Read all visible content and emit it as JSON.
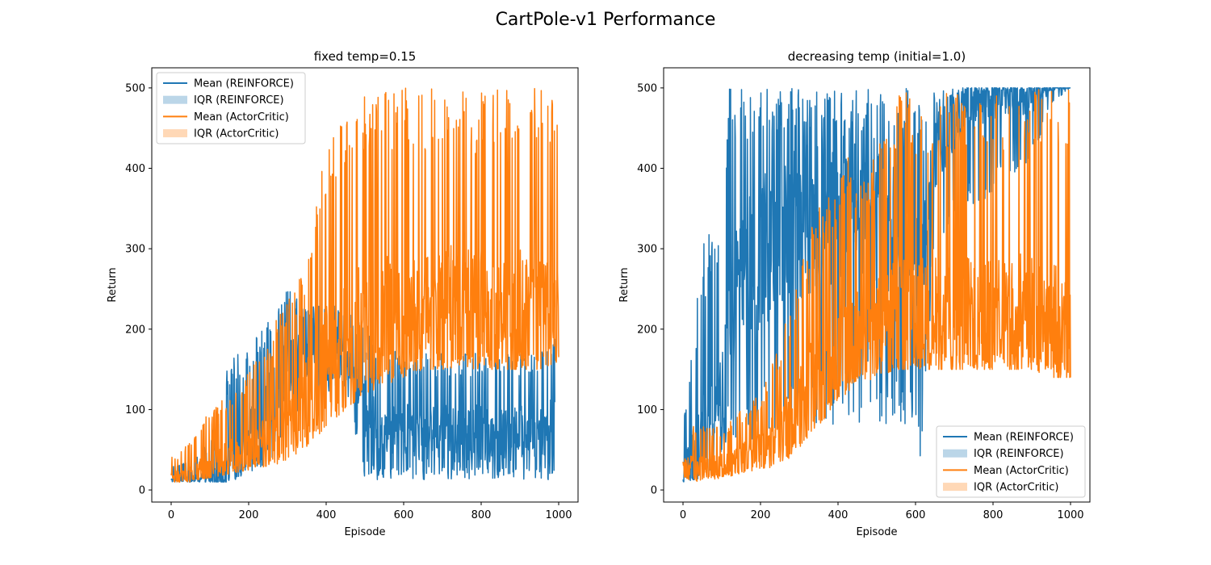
{
  "figure": {
    "title": "CartPole-v1 Performance"
  },
  "colors": {
    "reinforce": "#1f77b4",
    "actorcritic": "#ff7f0e"
  },
  "chart_data": [
    {
      "type": "line",
      "title": "fixed temp=0.15",
      "xlabel": "Episode",
      "ylabel": "Return",
      "xlim": [
        -50,
        1050
      ],
      "ylim": [
        -15,
        525
      ],
      "xticks": [
        0,
        200,
        400,
        600,
        800,
        1000
      ],
      "yticks": [
        0,
        100,
        200,
        300,
        400,
        500
      ],
      "legend_position": "upper-left",
      "legend": [
        "Mean (REINFORCE)",
        "IQR (REINFORCE)",
        "Mean (ActorCritic)",
        "IQR (ActorCritic)"
      ],
      "series": [
        {
          "name": "Mean (REINFORCE)",
          "approx_trend": {
            "x": [
              0,
              50,
              100,
              150,
              200,
              250,
              300,
              350,
              400,
              450,
              500,
              550,
              600,
              650,
              700,
              750,
              800,
              850,
              900,
              950,
              990
            ],
            "base": [
              15,
              15,
              15,
              30,
              60,
              100,
              150,
              170,
              180,
              180,
              100,
              80,
              80,
              70,
              70,
              70,
              70,
              70,
              70,
              70,
              80
            ],
            "low": [
              10,
              10,
              10,
              10,
              20,
              30,
              60,
              100,
              120,
              130,
              12,
              12,
              12,
              12,
              12,
              12,
              12,
              12,
              12,
              12,
              12
            ],
            "high": [
              30,
              40,
              60,
              160,
              180,
              220,
              250,
              230,
              230,
              230,
              200,
              180,
              170,
              170,
              170,
              170,
              170,
              170,
              170,
              170,
              200
            ]
          }
        },
        {
          "name": "Mean (ActorCritic)",
          "approx_trend": {
            "x": [
              0,
              50,
              100,
              150,
              200,
              250,
              300,
              350,
              400,
              450,
              500,
              550,
              600,
              650,
              700,
              750,
              800,
              850,
              900,
              950,
              1000
            ],
            "base": [
              15,
              20,
              30,
              40,
              45,
              60,
              80,
              110,
              150,
              170,
              200,
              210,
              210,
              220,
              230,
              220,
              220,
              210,
              220,
              210,
              200
            ],
            "low": [
              10,
              10,
              15,
              20,
              25,
              30,
              35,
              50,
              80,
              100,
              120,
              130,
              140,
              150,
              150,
              150,
              150,
              150,
              150,
              150,
              160
            ],
            "high": [
              40,
              60,
              100,
              120,
              150,
              190,
              240,
              280,
              430,
              500,
              500,
              500,
              500,
              500,
              500,
              500,
              500,
              500,
              500,
              500,
              500
            ]
          }
        }
      ]
    },
    {
      "type": "line",
      "title": "decreasing temp (initial=1.0)",
      "xlabel": "Episode",
      "ylabel": "Return",
      "xlim": [
        -50,
        1050
      ],
      "ylim": [
        -15,
        525
      ],
      "xticks": [
        0,
        200,
        400,
        600,
        800,
        1000
      ],
      "yticks": [
        0,
        100,
        200,
        300,
        400,
        500
      ],
      "legend_position": "lower-right",
      "legend": [
        "Mean (REINFORCE)",
        "IQR (REINFORCE)",
        "Mean (ActorCritic)",
        "IQR (ActorCritic)"
      ],
      "series": [
        {
          "name": "Mean (REINFORCE)",
          "approx_trend": {
            "x": [
              0,
              50,
              100,
              120,
              150,
              200,
              250,
              300,
              350,
              400,
              450,
              500,
              550,
              600,
              610,
              650,
              700,
              750,
              800,
              850,
              900,
              950,
              1000
            ],
            "base": [
              20,
              60,
              100,
              250,
              250,
              300,
              320,
              330,
              340,
              350,
              360,
              350,
              330,
              300,
              300,
              420,
              460,
              480,
              490,
              490,
              490,
              500,
              500
            ],
            "low": [
              10,
              15,
              40,
              60,
              60,
              60,
              70,
              70,
              80,
              80,
              80,
              80,
              80,
              60,
              12,
              300,
              330,
              350,
              370,
              380,
              400,
              480,
              500
            ],
            "high": [
              80,
              300,
              380,
              500,
              500,
              500,
              500,
              500,
              500,
              500,
              500,
              500,
              500,
              500,
              500,
              500,
              500,
              500,
              500,
              500,
              500,
              500,
              500
            ]
          }
        },
        {
          "name": "Mean (ActorCritic)",
          "approx_trend": {
            "x": [
              0,
              50,
              100,
              150,
              200,
              250,
              300,
              350,
              400,
              450,
              500,
              550,
              600,
              650,
              700,
              750,
              800,
              850,
              900,
              950,
              1000
            ],
            "base": [
              25,
              30,
              30,
              40,
              50,
              70,
              100,
              140,
              170,
              190,
              200,
              210,
              210,
              220,
              220,
              220,
              220,
              220,
              210,
              200,
              200
            ],
            "low": [
              10,
              10,
              15,
              20,
              25,
              30,
              50,
              80,
              110,
              130,
              140,
              150,
              150,
              150,
              150,
              150,
              150,
              150,
              150,
              140,
              140
            ],
            "high": [
              80,
              80,
              80,
              100,
              120,
              180,
              280,
              360,
              410,
              420,
              430,
              500,
              500,
              500,
              500,
              500,
              500,
              500,
              500,
              500,
              500
            ]
          }
        }
      ]
    }
  ]
}
